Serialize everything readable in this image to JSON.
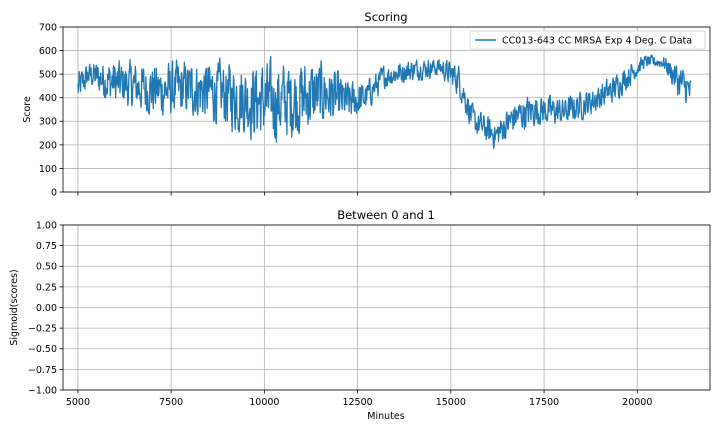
{
  "chart_data": [
    {
      "type": "line",
      "title": "Scoring",
      "xlabel": "",
      "ylabel": "Score",
      "xlim": [
        4600,
        21950
      ],
      "ylim": [
        0,
        700
      ],
      "yticks": [
        0,
        100,
        200,
        300,
        400,
        500,
        600,
        700
      ],
      "xticks": [
        5000,
        7500,
        10000,
        12500,
        15000,
        17500,
        20000
      ],
      "x_tick_labels_shown": false,
      "grid": true,
      "legend_position": "upper right",
      "series": [
        {
          "name": "CC013-643 CC MRSA Exp 4 Deg. C Data",
          "color": "#1f77b4",
          "x_start": 5000,
          "x_end": 21450,
          "envelope": [
            {
              "x": 5000,
              "center": 440,
              "spread": 90
            },
            {
              "x": 5300,
              "center": 500,
              "spread": 60
            },
            {
              "x": 5800,
              "center": 470,
              "spread": 110
            },
            {
              "x": 6500,
              "center": 450,
              "spread": 120
            },
            {
              "x": 7200,
              "center": 430,
              "spread": 140
            },
            {
              "x": 8000,
              "center": 440,
              "spread": 140
            },
            {
              "x": 8800,
              "center": 420,
              "spread": 160
            },
            {
              "x": 9600,
              "center": 390,
              "spread": 190
            },
            {
              "x": 10300,
              "center": 380,
              "spread": 200
            },
            {
              "x": 11000,
              "center": 400,
              "spread": 190
            },
            {
              "x": 11600,
              "center": 420,
              "spread": 160
            },
            {
              "x": 12200,
              "center": 380,
              "spread": 110
            },
            {
              "x": 12700,
              "center": 400,
              "spread": 80
            },
            {
              "x": 13200,
              "center": 490,
              "spread": 60
            },
            {
              "x": 14000,
              "center": 520,
              "spread": 55
            },
            {
              "x": 14700,
              "center": 530,
              "spread": 45
            },
            {
              "x": 15200,
              "center": 480,
              "spread": 80
            },
            {
              "x": 15600,
              "center": 300,
              "spread": 70
            },
            {
              "x": 16200,
              "center": 240,
              "spread": 70
            },
            {
              "x": 16700,
              "center": 320,
              "spread": 80
            },
            {
              "x": 17300,
              "center": 350,
              "spread": 80
            },
            {
              "x": 18000,
              "center": 340,
              "spread": 70
            },
            {
              "x": 18700,
              "center": 380,
              "spread": 70
            },
            {
              "x": 19300,
              "center": 430,
              "spread": 70
            },
            {
              "x": 19800,
              "center": 500,
              "spread": 60
            },
            {
              "x": 20200,
              "center": 555,
              "spread": 30
            },
            {
              "x": 20700,
              "center": 550,
              "spread": 30
            },
            {
              "x": 21100,
              "center": 470,
              "spread": 90
            },
            {
              "x": 21450,
              "center": 420,
              "spread": 80
            }
          ]
        }
      ]
    },
    {
      "type": "line",
      "title": "Between 0 and 1",
      "xlabel": "Minutes",
      "ylabel": "Sigmoid(scores)",
      "xlim": [
        4600,
        21950
      ],
      "ylim": [
        -1.0,
        1.0
      ],
      "yticks": [
        -1.0,
        -0.75,
        -0.5,
        -0.25,
        0.0,
        0.25,
        0.5,
        0.75,
        1.0
      ],
      "ytick_labels": [
        "−1.00",
        "−0.75",
        "−0.50",
        "−0.25",
        "0.00",
        "0.25",
        "0.50",
        "0.75",
        "1.00"
      ],
      "xticks": [
        5000,
        7500,
        10000,
        12500,
        15000,
        17500,
        20000
      ],
      "xtick_labels": [
        "5000",
        "7500",
        "10000",
        "12500",
        "15000",
        "17500",
        "20000"
      ],
      "grid": true,
      "series": []
    }
  ]
}
